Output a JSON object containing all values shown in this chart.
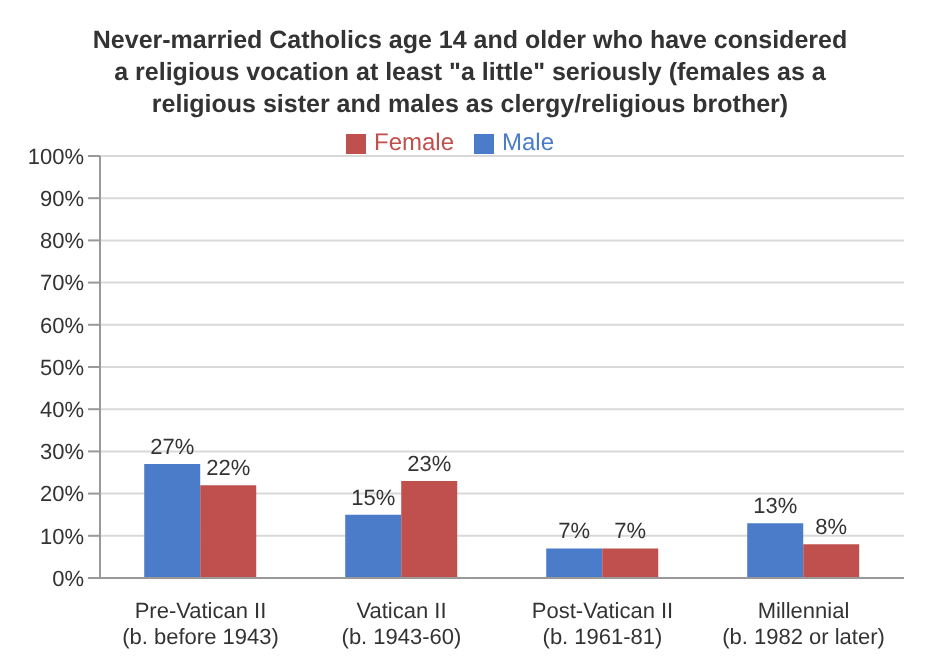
{
  "chart_data": {
    "type": "bar",
    "title": "Never-married Catholics age 14 and older who have considered\na religious vocation at least \"a little\" seriously (females as a\nreligious sister and males as clergy/religious brother)",
    "categories": [
      "Pre-Vatican II\n(b. before 1943)",
      "Vatican II\n(b. 1943-60)",
      "Post-Vatican II\n(b. 1961-81)",
      "Millennial\n(b. 1982 or later)"
    ],
    "series": [
      {
        "name": "Male",
        "color": "#4a7cc9",
        "values": [
          27,
          15,
          7,
          13
        ],
        "value_labels": [
          "27%",
          "15%",
          "7%",
          "13%"
        ]
      },
      {
        "name": "Female",
        "color": "#c0504d",
        "values": [
          22,
          23,
          7,
          8
        ],
        "value_labels": [
          "22%",
          "23%",
          "7%",
          "8%"
        ]
      }
    ],
    "ylim": [
      0,
      100
    ],
    "yticks": [
      {
        "value": 0,
        "label": "0%"
      },
      {
        "value": 10,
        "label": "10%"
      },
      {
        "value": 20,
        "label": "20%"
      },
      {
        "value": 30,
        "label": "30%"
      },
      {
        "value": 40,
        "label": "40%"
      },
      {
        "value": 50,
        "label": "50%"
      },
      {
        "value": 60,
        "label": "60%"
      },
      {
        "value": 70,
        "label": "70%"
      },
      {
        "value": 80,
        "label": "80%"
      },
      {
        "value": 90,
        "label": "90%"
      },
      {
        "value": 100,
        "label": "100%"
      }
    ],
    "grid": "y",
    "legend": "top"
  }
}
